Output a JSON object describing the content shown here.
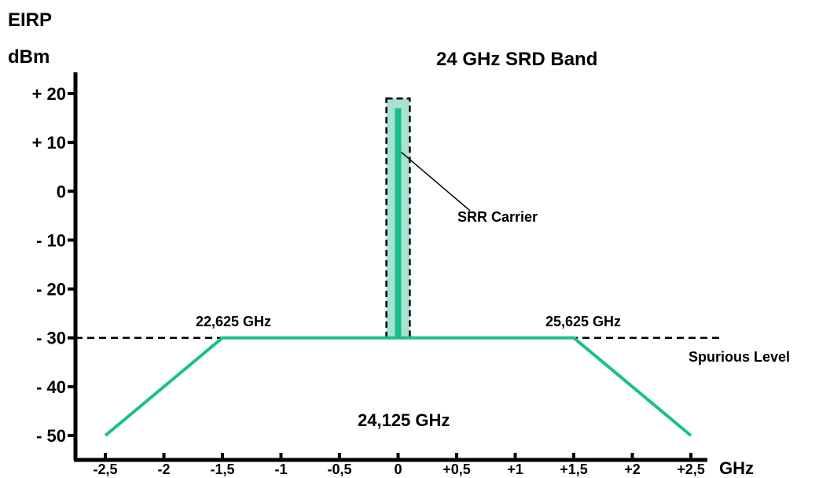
{
  "chart_data": {
    "type": "line",
    "title": "24 GHz SRD Band",
    "ylabel_line1": "EIRP",
    "ylabel_line2": "dBm",
    "x_unit": "GHz",
    "x_ticks": [
      -2.5,
      -2,
      -1.5,
      -1,
      -0.5,
      0,
      0.5,
      1,
      1.5,
      2,
      2.5
    ],
    "x_tick_labels": [
      "-2,5",
      "-2",
      "-1,5",
      "-1",
      "-0,5",
      "0",
      "+0,5",
      "+1",
      "+1,5",
      "+2",
      "+2,5"
    ],
    "y_ticks": [
      20,
      10,
      0,
      -10,
      -20,
      -30,
      -40,
      -50
    ],
    "y_tick_labels": [
      "+ 20",
      "+ 10",
      "0",
      "- 10",
      "- 20",
      "- 30",
      "- 40",
      "- 50"
    ],
    "xlim": [
      -2.5,
      2.5
    ],
    "ylim": [
      -50,
      20
    ],
    "grid": false,
    "series": [
      {
        "values": [
          [
            -2.5,
            -50
          ],
          [
            -1.5,
            -30
          ],
          [
            1.5,
            -30
          ],
          [
            2.5,
            -50
          ]
        ]
      }
    ],
    "carrier": {
      "x": 0,
      "y_top": 17,
      "y_bottom": -30,
      "label": "SRR Carrier"
    },
    "carrier_box": {
      "x_range": [
        -0.1,
        0.1
      ],
      "y_range": [
        -30,
        19
      ]
    },
    "spurious_level": {
      "y": -30,
      "label": "Spurious Level"
    },
    "annotations": {
      "left_freq": "22,625 GHz",
      "right_freq": "25,625 GHz",
      "center_freq": "24,125 GHz"
    },
    "colors": {
      "mask": "#1abf8f",
      "carrier_fill": "#a8e2d3",
      "axis": "#000000"
    }
  }
}
